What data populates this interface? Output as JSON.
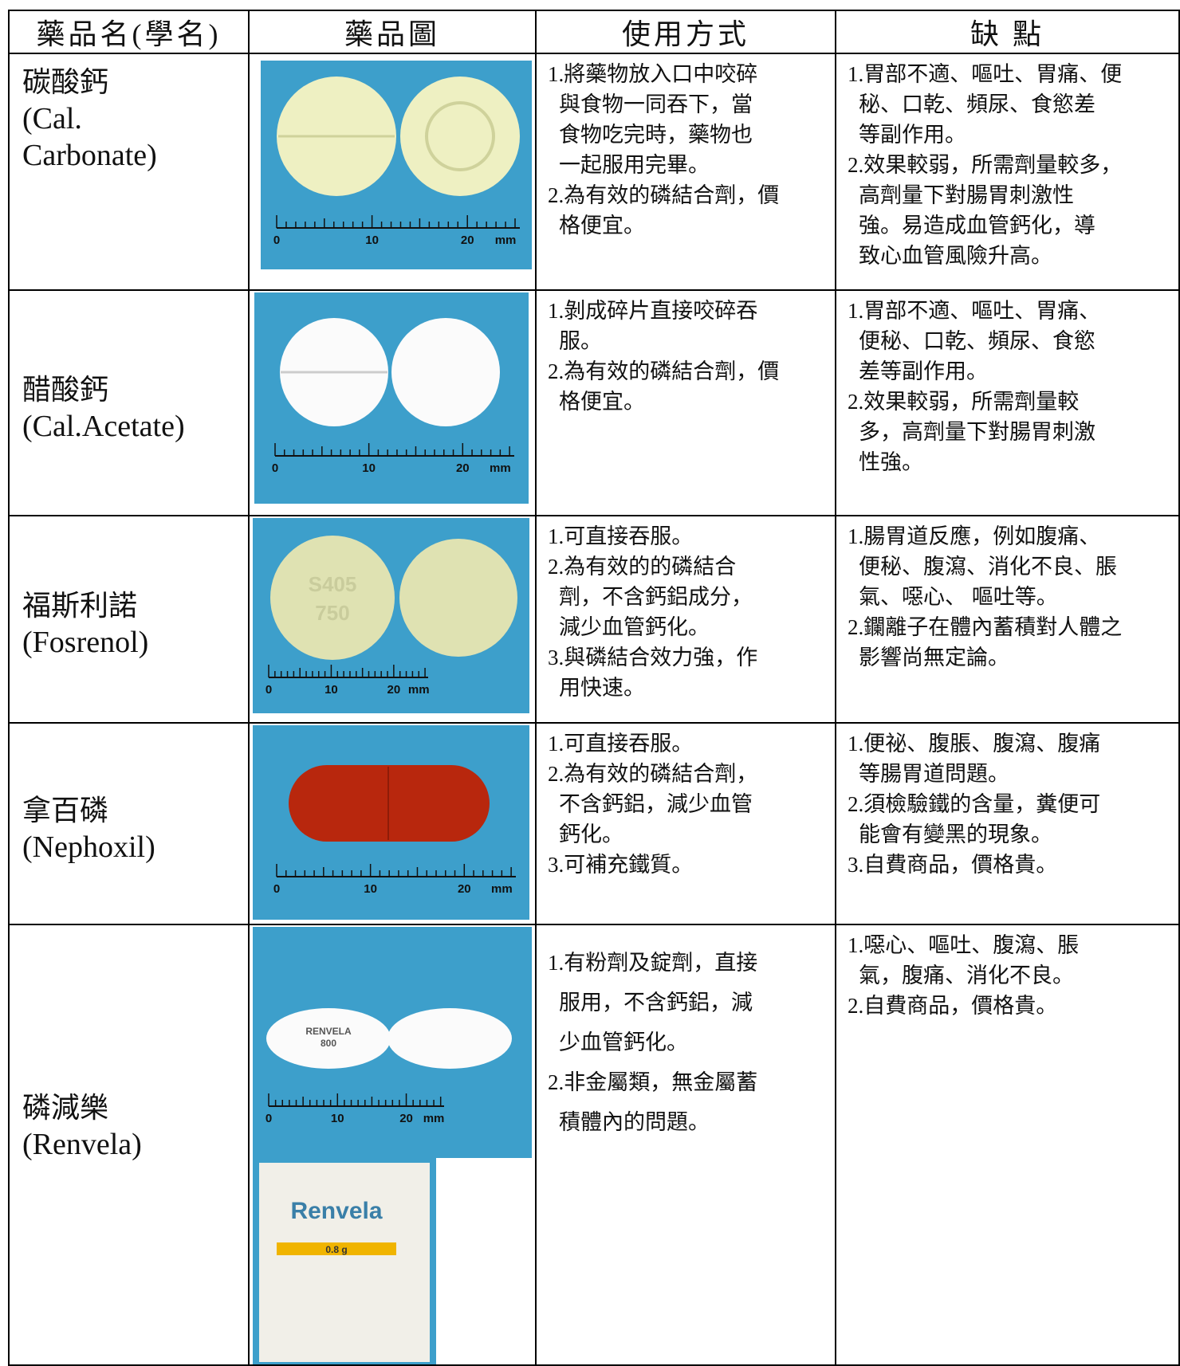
{
  "table": {
    "header": [
      "藥品名(學名)",
      "藥品圖",
      "使用方式",
      "缺 點"
    ],
    "rows": [
      {
        "name": "碳酸鈣",
        "sci": [
          "(Cal.",
          "Carbonate)"
        ],
        "usage": [
          [
            "1.將藥物放入口中咬碎",
            "與食物一同吞下，當",
            "食物吃完時，藥物也",
            "一起服用完畢。"
          ],
          [
            "2.為有效的磷結合劑，價",
            "格便宜。"
          ]
        ],
        "cons": [
          [
            "1.胃部不適、嘔吐、胃痛、便",
            "秘、口乾、頻尿、食慾差",
            "等副作用。"
          ],
          [
            "2.效果較弱，所需劑量較多，",
            "高劑量下對腸胃刺激性",
            "強。易造成血管鈣化，導",
            "致心血管風險升高。"
          ]
        ]
      },
      {
        "name": "醋酸鈣",
        "sci": [
          "(Cal.Acetate)"
        ],
        "usage": [
          [
            "1.剝成碎片直接咬碎吞",
            "服。"
          ],
          [
            "2.為有效的磷結合劑，價",
            "格便宜。"
          ]
        ],
        "cons": [
          [
            "1.胃部不適、嘔吐、胃痛、",
            "便秘、口乾、頻尿、食慾",
            "差等副作用。"
          ],
          [
            "2.效果較弱，所需劑量較",
            "多，高劑量下對腸胃刺激",
            "性強。"
          ]
        ]
      },
      {
        "name": "福斯利諾",
        "sci": [
          "(Fosrenol)"
        ],
        "usage": [
          [
            "1.可直接吞服。"
          ],
          [
            "2.為有效的的磷結合",
            "劑，不含鈣鋁成分，",
            "減少血管鈣化。"
          ],
          [
            "3.與磷結合效力強，作",
            "用快速。"
          ]
        ],
        "cons": [
          [
            "1.腸胃道反應，例如腹痛、",
            "便秘、腹瀉、消化不良、脹",
            "氣、噁心、 嘔吐等。"
          ],
          [
            "2.鑭離子在體內蓄積對人體之",
            "影響尚無定論。"
          ]
        ]
      },
      {
        "name": "拿百磷",
        "sci": [
          "(Nephoxil)"
        ],
        "usage": [
          [
            "1.可直接吞服。"
          ],
          [
            "2.為有效的磷結合劑，",
            "不含鈣鋁，減少血管",
            "鈣化。"
          ],
          [
            "3.可補充鐵質。"
          ]
        ],
        "cons": [
          [
            "1.便祕、腹脹、腹瀉、腹痛",
            "等腸胃道問題。"
          ],
          [
            "2.須檢驗鐵的含量，糞便可",
            "能會有變黑的現象。"
          ],
          [
            "3.自費商品，價格貴。"
          ]
        ]
      },
      {
        "name": "磷減樂",
        "sci": [
          "(Renvela)"
        ],
        "usage": [
          [
            "1.有粉劑及錠劑，直接",
            "服用，不含鈣鋁，減",
            "少血管鈣化。"
          ],
          [
            "2.非金屬類，無金屬蓄",
            "積體內的問題。"
          ]
        ],
        "cons": [
          [
            "1.噁心、嘔吐、腹瀉、脹",
            "氣，腹痛、消化不良。"
          ],
          [
            "2.自費商品，價格貴。"
          ]
        ]
      }
    ],
    "photo_text": {
      "ruler": [
        "0",
        "10",
        "20",
        "mm"
      ],
      "imprint_fosrenol": [
        "S405",
        "750"
      ],
      "imprint_renvela": [
        "RENVELA",
        "800"
      ],
      "sachet": [
        "Renvela",
        "0.8 g"
      ]
    }
  }
}
